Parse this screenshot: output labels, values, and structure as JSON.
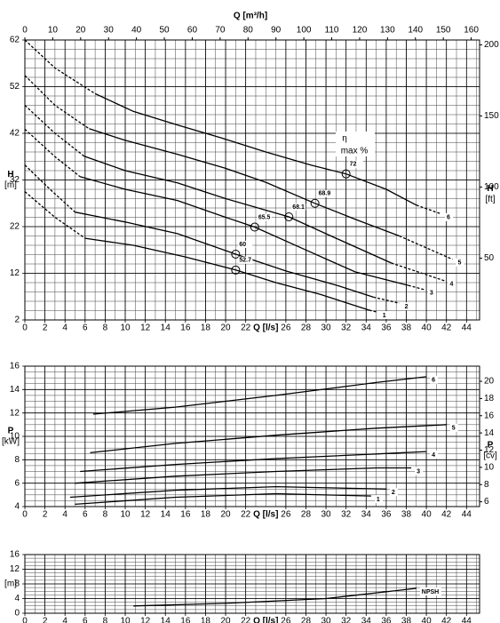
{
  "chart_data": [
    {
      "type": "line",
      "x_label": "Q [l/s]",
      "x2_label": "Q [m³/h]",
      "xlim": [
        0,
        45.3
      ],
      "xticks": [
        0,
        2,
        4,
        6,
        8,
        10,
        12,
        14,
        16,
        18,
        20,
        22,
        26,
        28,
        30,
        32,
        34,
        36,
        38,
        40,
        42,
        44
      ],
      "x2lim": [
        0,
        163
      ],
      "x2ticks": [
        0,
        10,
        20,
        30,
        40,
        50,
        60,
        70,
        80,
        90,
        100,
        110,
        120,
        130,
        140,
        150,
        160
      ],
      "y_label": "H",
      "y_unit": "[m]",
      "ylim": [
        2,
        62
      ],
      "yticks": [
        2,
        12,
        22,
        32,
        42,
        52,
        62
      ],
      "y2_label": "H",
      "y2_unit": "[ft]",
      "y2lim": [
        6.56,
        203.4
      ],
      "y2ticks": [
        50,
        100,
        150,
        200
      ],
      "grid": true,
      "color": "#000000",
      "series": [
        {
          "name": "6",
          "pieces": [
            {
              "style": "dashed",
              "x": [
                0,
                3,
                7
              ],
              "values": [
                62,
                56,
                50.5
              ]
            },
            {
              "style": "solid",
              "x": [
                7,
                10.8,
                15.2,
                19.6,
                24,
                28.5,
                32,
                36,
                39
              ],
              "values": [
                50.5,
                46.7,
                43.8,
                41,
                38,
                35.2,
                33.3,
                30,
                26.6
              ]
            },
            {
              "style": "dashed",
              "x": [
                39,
                41.5
              ],
              "values": [
                26.6,
                24.7
              ]
            }
          ]
        },
        {
          "name": "5",
          "pieces": [
            {
              "style": "dashed",
              "x": [
                0,
                3,
                6.4
              ],
              "values": [
                54.4,
                48,
                43
              ]
            },
            {
              "style": "solid",
              "x": [
                6.4,
                10,
                15.2,
                20,
                24,
                28.9,
                33,
                37.3
              ],
              "values": [
                43,
                40.5,
                37.5,
                34.5,
                31.5,
                27,
                23.5,
                20
              ]
            },
            {
              "style": "dashed",
              "x": [
                37.3,
                42.6
              ],
              "values": [
                20,
                15
              ]
            }
          ]
        },
        {
          "name": "4",
          "pieces": [
            {
              "style": "dashed",
              "x": [
                0,
                3,
                5.9
              ],
              "values": [
                48,
                42,
                37.1
              ]
            },
            {
              "style": "solid",
              "x": [
                5.9,
                10,
                15.2,
                20,
                26.3,
                31,
                36.5
              ],
              "values": [
                37.1,
                34,
                31.4,
                28,
                24.1,
                19.5,
                14.2
              ]
            },
            {
              "style": "dashed",
              "x": [
                36.5,
                41.8
              ],
              "values": [
                14.2,
                10.4
              ]
            }
          ]
        },
        {
          "name": "3",
          "pieces": [
            {
              "style": "dashed",
              "x": [
                0,
                3,
                5.5
              ],
              "values": [
                42.9,
                37,
                32.7
              ]
            },
            {
              "style": "solid",
              "x": [
                5.5,
                10,
                15.2,
                20,
                22.9,
                28,
                32.9,
                38.2
              ],
              "values": [
                32.7,
                30,
                27.6,
                24,
                21.9,
                17,
                12.3,
                9.4
              ]
            },
            {
              "style": "dashed",
              "x": [
                38.2,
                39.8
              ],
              "values": [
                9.4,
                8.5
              ]
            }
          ]
        },
        {
          "name": "2",
          "pieces": [
            {
              "style": "dashed",
              "x": [
                0,
                2.5,
                5
              ],
              "values": [
                35.2,
                30,
                25.1
              ]
            },
            {
              "style": "solid",
              "x": [
                5,
                10,
                15.2,
                21,
                26,
                31.1,
                34.7
              ],
              "values": [
                25.1,
                23,
                20.5,
                16.1,
                12.5,
                9.4,
                6.9
              ]
            },
            {
              "style": "dashed",
              "x": [
                34.7,
                37.3
              ],
              "values": [
                6.9,
                5.6
              ]
            }
          ]
        },
        {
          "name": "1",
          "pieces": [
            {
              "style": "dashed",
              "x": [
                0,
                3,
                6
              ],
              "values": [
                29.5,
                24,
                19.5
              ]
            },
            {
              "style": "solid",
              "x": [
                6,
                10.8,
                16,
                21,
                25,
                29.4,
                34.3
              ],
              "values": [
                19.5,
                18,
                15.5,
                12.7,
                10,
                7.5,
                4.1
              ]
            },
            {
              "style": "dashed",
              "x": [
                34.3,
                35.1
              ],
              "values": [
                4.1,
                3.7
              ]
            }
          ]
        }
      ],
      "efficiency_label": "η",
      "efficiency_unit": "max %",
      "efficiency_points": [
        {
          "x": 32,
          "h": 33.3,
          "eta": 72
        },
        {
          "x": 28.9,
          "h": 27,
          "eta": 68.9
        },
        {
          "x": 26.3,
          "h": 24.1,
          "eta": 68.1
        },
        {
          "x": 22.9,
          "h": 21.9,
          "eta": 65.5
        },
        {
          "x": 21,
          "h": 16.1,
          "eta": 60
        },
        {
          "x": 21,
          "h": 12.7,
          "eta": 52.7
        }
      ]
    },
    {
      "type": "line",
      "x_label": "Q [l/s]",
      "xlim": [
        0,
        45.3
      ],
      "xticks": [
        0,
        2,
        4,
        6,
        8,
        10,
        12,
        14,
        16,
        18,
        20,
        22,
        26,
        28,
        30,
        32,
        34,
        36,
        38,
        40,
        42,
        44
      ],
      "y_label": "P",
      "y_unit": "[kW]",
      "ylim": [
        4,
        16
      ],
      "yticks": [
        4,
        6,
        8,
        10,
        12,
        14,
        16
      ],
      "y2_label": "P",
      "y2_unit": "[cv]",
      "y2lim": [
        5.44,
        21.76
      ],
      "y2ticks": [
        6,
        8,
        10,
        12,
        14,
        16,
        18,
        20
      ],
      "grid": true,
      "color": "#000000",
      "series": [
        {
          "name": "6",
          "pieces": [
            {
              "style": "solid",
              "x": [
                6.8,
                15,
                25,
                35,
                40
              ],
              "values": [
                11.9,
                12.5,
                13.5,
                14.6,
                15.1
              ]
            }
          ]
        },
        {
          "name": "5",
          "pieces": [
            {
              "style": "solid",
              "x": [
                6.5,
                15,
                25,
                35,
                42
              ],
              "values": [
                8.6,
                9.4,
                10.1,
                10.7,
                11
              ]
            }
          ]
        },
        {
          "name": "4",
          "pieces": [
            {
              "style": "solid",
              "x": [
                5.5,
                15,
                25,
                35,
                40
              ],
              "values": [
                7,
                7.6,
                8.1,
                8.5,
                8.7
              ]
            }
          ]
        },
        {
          "name": "3",
          "pieces": [
            {
              "style": "solid",
              "x": [
                5,
                15,
                25,
                35,
                38.5
              ],
              "values": [
                6,
                6.6,
                7,
                7.3,
                7.3
              ]
            }
          ]
        },
        {
          "name": "2",
          "pieces": [
            {
              "style": "solid",
              "x": [
                4.5,
                15,
                25,
                36
              ],
              "values": [
                4.8,
                5.4,
                5.7,
                5.5
              ]
            }
          ]
        },
        {
          "name": "1",
          "pieces": [
            {
              "style": "solid",
              "x": [
                5,
                15,
                25,
                34.5
              ],
              "values": [
                4.2,
                4.8,
                5.1,
                4.9
              ]
            }
          ]
        }
      ]
    },
    {
      "type": "line",
      "x_label": "Q [l/s]",
      "xlim": [
        0,
        45.3
      ],
      "xticks": [
        0,
        2,
        4,
        6,
        8,
        10,
        12,
        14,
        16,
        18,
        20,
        22,
        26,
        28,
        30,
        32,
        34,
        36,
        38,
        40,
        42,
        44
      ],
      "y_unit": "[m]",
      "ylim": [
        0,
        16
      ],
      "yticks": [
        0,
        4,
        8,
        12,
        16
      ],
      "grid": true,
      "color": "#000000",
      "series": [
        {
          "name": "NPSH",
          "pieces": [
            {
              "style": "solid",
              "x": [
                10.8,
                20,
                30,
                39
              ],
              "values": [
                2,
                2.7,
                4,
                6.8
              ]
            }
          ]
        }
      ]
    }
  ]
}
